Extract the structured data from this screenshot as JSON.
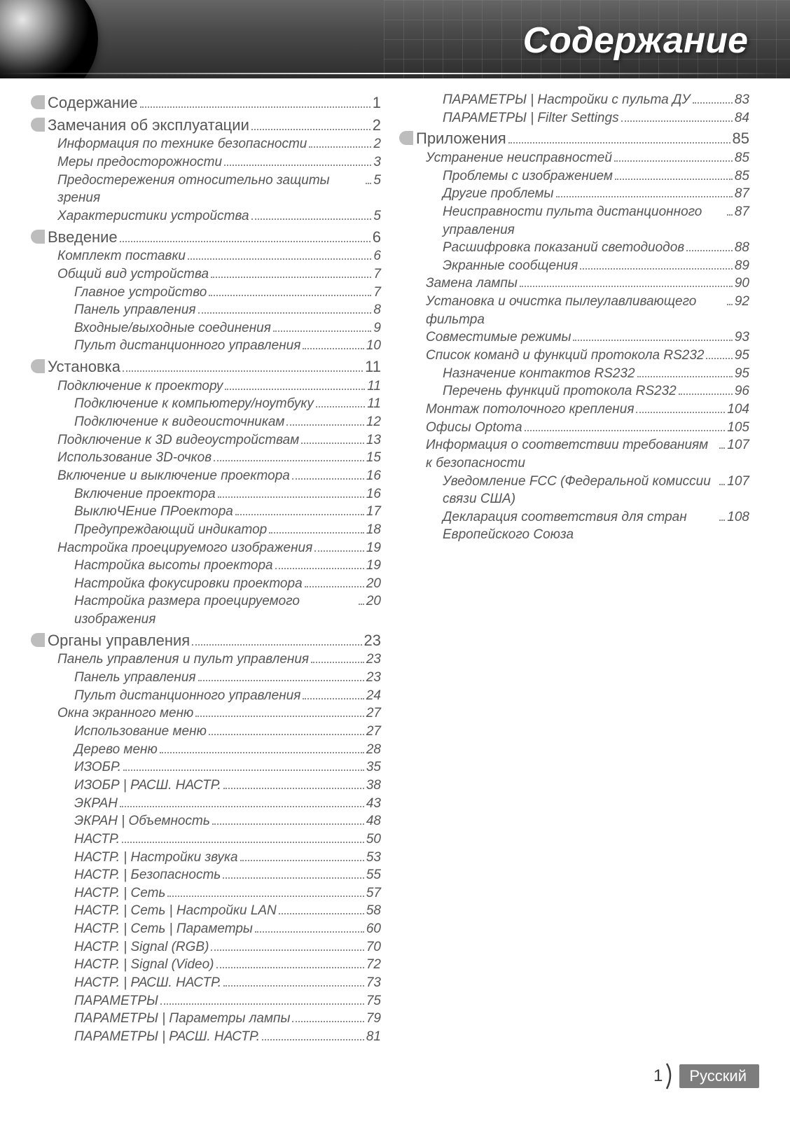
{
  "header": {
    "title": "Содержание",
    "background_gradient": [
      "#656565",
      "#4a4a4a",
      "#2d2d2d"
    ],
    "title_color": "#ffffff",
    "title_fontsize": 52,
    "title_italic": true,
    "title_bold": true
  },
  "styles": {
    "body_fontsize": 19,
    "section_fontsize": 22,
    "text_color": "#565656",
    "leader_color": "#8a8a8a",
    "pill_color": "#bdbdbd"
  },
  "toc": [
    {
      "level": 0,
      "text": "Содержание",
      "page": "1"
    },
    {
      "level": 0,
      "text": "Замечания об эксплуатации",
      "page": "2"
    },
    {
      "level": 1,
      "text": "Информация по технике безопасности",
      "page": "2"
    },
    {
      "level": 1,
      "text": "Меры предосторожности",
      "page": "3"
    },
    {
      "level": 1,
      "text": "Предостережения относительно защиты зрения",
      "page": "5"
    },
    {
      "level": 1,
      "text": "Характеристики устройства",
      "page": "5"
    },
    {
      "level": 0,
      "text": "Введение",
      "page": "6"
    },
    {
      "level": 1,
      "text": "Комплект поставки",
      "page": "6"
    },
    {
      "level": 1,
      "text": "Общий вид устройства",
      "page": "7"
    },
    {
      "level": 2,
      "text": "Главное устройство",
      "page": "7"
    },
    {
      "level": 2,
      "text": "Панель управления",
      "page": "8"
    },
    {
      "level": 2,
      "text": "Входные/выходные соединения",
      "page": "9"
    },
    {
      "level": 2,
      "text": "Пульт дистанционного управления",
      "page": "10"
    },
    {
      "level": 0,
      "text": "Установка",
      "page": "11"
    },
    {
      "level": 1,
      "text": "Подключение к проектору",
      "page": "11"
    },
    {
      "level": 2,
      "text": "Подключение к компьютеру/ноутбуку",
      "page": "11"
    },
    {
      "level": 2,
      "text": "Подключение к видеоисточникам",
      "page": "12"
    },
    {
      "level": 1,
      "text": "Подключение к 3D видеоустройствам",
      "page": "13"
    },
    {
      "level": 1,
      "text": "Использование 3D-очков",
      "page": "15"
    },
    {
      "level": 1,
      "text": "Включение и выключение проектора",
      "page": "16"
    },
    {
      "level": 2,
      "text": "Включение проектора",
      "page": "16"
    },
    {
      "level": 2,
      "text": "ВыклюЧЕние ПРоектора",
      "page": "17"
    },
    {
      "level": 2,
      "text": "Предупреждающий индикатор",
      "page": "18"
    },
    {
      "level": 1,
      "text": "Настройка проецируемого изображения",
      "page": "19"
    },
    {
      "level": 2,
      "text": "Настройка высоты проектора",
      "page": "19"
    },
    {
      "level": 2,
      "text": "Настройка фокусировки проектора",
      "page": "20"
    },
    {
      "level": 2,
      "text": "Настройка размера проецируемого изображения",
      "page": "20"
    },
    {
      "level": 0,
      "text": "Органы управления",
      "page": "23"
    },
    {
      "level": 1,
      "text": "Панель управления и пульт управления",
      "page": "23"
    },
    {
      "level": 2,
      "text": "Панель управления",
      "page": "23"
    },
    {
      "level": 2,
      "text": "Пульт дистанционного управления",
      "page": "24"
    },
    {
      "level": 1,
      "text": "Окна экранного меню",
      "page": "27"
    },
    {
      "level": 2,
      "text": "Использование меню",
      "page": "27"
    },
    {
      "level": 2,
      "text": "Дерево меню",
      "page": "28"
    },
    {
      "level": 2,
      "text": "ИЗОБР.",
      "page": "35"
    },
    {
      "level": 2,
      "text": "ИЗОБР | РАСШ. НАСТР.",
      "page": "38"
    },
    {
      "level": 2,
      "text": "ЭКРАН",
      "page": "43"
    },
    {
      "level": 2,
      "text": "ЭКРАН | Объемность",
      "page": "48"
    },
    {
      "level": 2,
      "text": "НАСТР.",
      "page": "50"
    },
    {
      "level": 2,
      "text": "НАСТР. | Настройки звука",
      "page": "53"
    },
    {
      "level": 2,
      "text": "НАСТР. | Безопасность",
      "page": "55"
    },
    {
      "level": 2,
      "text": "НАСТР. | Сеть",
      "page": "57"
    },
    {
      "level": 2,
      "text": "НАСТР. | Сеть | Настройки LAN",
      "page": "58"
    },
    {
      "level": 2,
      "text": "НАСТР. | Сеть | Параметры",
      "page": "60"
    },
    {
      "level": 2,
      "text": "НАСТР. | Signal (RGB)",
      "page": "70"
    },
    {
      "level": 2,
      "text": "НАСТР. | Signal (Video)",
      "page": "72"
    },
    {
      "level": 2,
      "text": "НАСТР. | РАСШ. НАСТР.",
      "page": "73"
    },
    {
      "level": 2,
      "text": "ПАРАМЕТРЫ",
      "page": "75"
    },
    {
      "level": 2,
      "text": "ПАРАМЕТРЫ | Параметры лампы",
      "page": "79"
    },
    {
      "level": 2,
      "text": "ПАРАМЕТРЫ | РАСШ. НАСТР.",
      "page": "81"
    },
    {
      "level": 2,
      "text": "ПАРАМЕТРЫ | Настройки с пульта ДУ",
      "page": "83"
    },
    {
      "level": 2,
      "text": "ПАРАМЕТРЫ | Filter Settings",
      "page": "84"
    },
    {
      "level": 0,
      "text": "Приложения",
      "page": "85"
    },
    {
      "level": 1,
      "text": "Устранение неисправностей",
      "page": "85"
    },
    {
      "level": 2,
      "text": "Проблемы с изображением",
      "page": "85"
    },
    {
      "level": 2,
      "text": "Другие проблемы",
      "page": "87"
    },
    {
      "level": 2,
      "text": "Неисправности пульта дистанционного управления",
      "page": "87"
    },
    {
      "level": 2,
      "text": "Расшифровка показаний светодиодов",
      "page": "88"
    },
    {
      "level": 2,
      "text": "Экранные сообщения",
      "page": "89"
    },
    {
      "level": 1,
      "text": "Замена лампы",
      "page": "90"
    },
    {
      "level": 1,
      "text": "Установка и очистка пылеулавливающего фильтра",
      "page": "92"
    },
    {
      "level": 1,
      "text": "Совместимые режимы",
      "page": "93"
    },
    {
      "level": 1,
      "text": "Список команд и функций протокола RS232",
      "page": "95"
    },
    {
      "level": 2,
      "text": "Назначение контактов RS232",
      "page": "95"
    },
    {
      "level": 2,
      "text": "Перечень функций протокола RS232",
      "page": "96"
    },
    {
      "level": 1,
      "text": "Монтаж потолочного крепления",
      "page": "104"
    },
    {
      "level": 1,
      "text": "Офисы Optoma",
      "page": "105"
    },
    {
      "level": 1,
      "text": "Информация о соответствии требованиям к безопасности",
      "page": "107"
    },
    {
      "level": 2,
      "text": "Уведомление FCC (Федеральной комиссии связи США)",
      "page": "107"
    },
    {
      "level": 2,
      "text": "Декларация соответствия для стран Европейского Союза",
      "page": "108"
    }
  ],
  "footer": {
    "page_number": "1",
    "language_label": "Русский",
    "tab_background": "#7d7d7d",
    "tab_text_color": "#ffffff"
  }
}
